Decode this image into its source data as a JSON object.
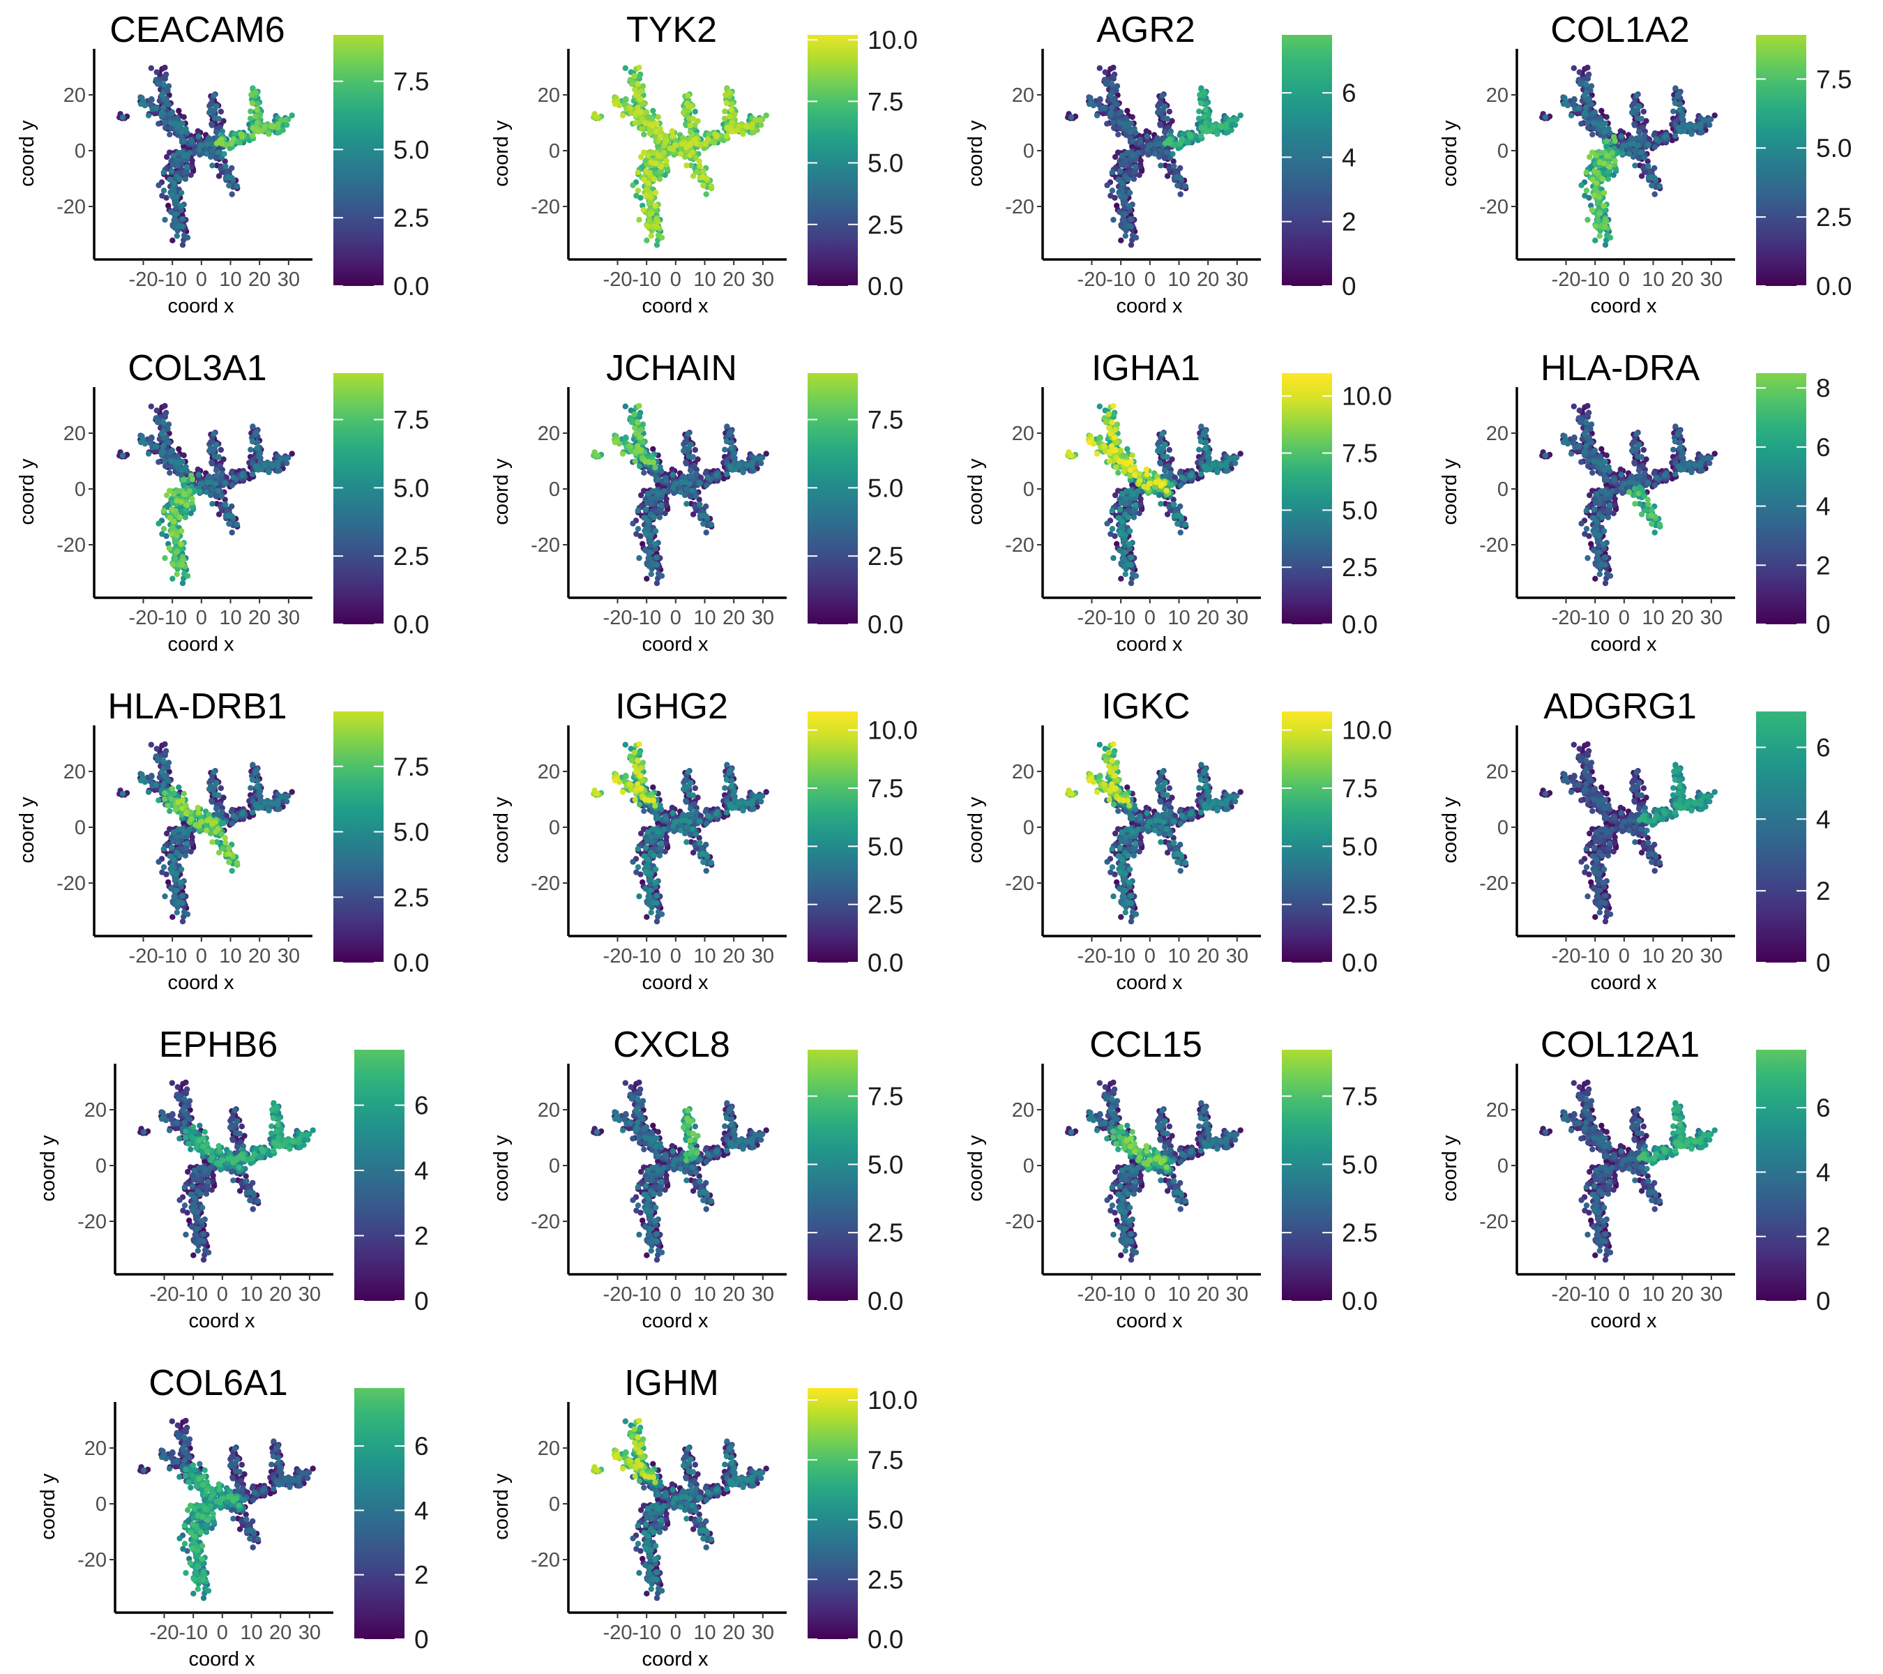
{
  "figure": {
    "colormap": "viridis",
    "colormap_stops": [
      "#440154",
      "#482878",
      "#3e4a89",
      "#31688e",
      "#26828e",
      "#1f9e89",
      "#35b779",
      "#6ece58",
      "#b5de2b",
      "#fde725"
    ],
    "background": "#ffffff"
  },
  "chart_data": [
    {
      "type": "scatter",
      "title": "CEACAM6",
      "xlabel": "coord x",
      "ylabel": "coord y",
      "xticks": [
        "-20",
        "-10",
        "0",
        "10",
        "20",
        "30"
      ],
      "yticks": [
        "20",
        "0",
        "-20"
      ],
      "colorbar_ticks": [
        "0.0",
        "2.5",
        "5.0",
        "7.5"
      ],
      "colorbar_max": 9.2,
      "hot_regions": [
        "right-arm"
      ]
    },
    {
      "type": "scatter",
      "title": "TYK2",
      "xlabel": "coord x",
      "ylabel": "coord y",
      "xticks": [
        "-20",
        "-10",
        "0",
        "10",
        "20",
        "30"
      ],
      "yticks": [
        "20",
        "0",
        "-20"
      ],
      "colorbar_ticks": [
        "0.0",
        "2.5",
        "5.0",
        "7.5",
        "10.0"
      ],
      "colorbar_max": 10.2,
      "hot_regions": [
        "all"
      ]
    },
    {
      "type": "scatter",
      "title": "AGR2",
      "xlabel": "coord x",
      "ylabel": "coord y",
      "xticks": [
        "-20",
        "-10",
        "0",
        "10",
        "20",
        "30"
      ],
      "yticks": [
        "20",
        "0",
        "-20"
      ],
      "colorbar_ticks": [
        "0",
        "2",
        "4",
        "6"
      ],
      "colorbar_max": 7.8,
      "hot_regions": [
        "right-arm"
      ]
    },
    {
      "type": "scatter",
      "title": "COL1A2",
      "xlabel": "coord x",
      "ylabel": "coord y",
      "xticks": [
        "-20",
        "-10",
        "0",
        "10",
        "20",
        "30"
      ],
      "yticks": [
        "20",
        "0",
        "-20"
      ],
      "colorbar_ticks": [
        "0.0",
        "2.5",
        "5.0",
        "7.5"
      ],
      "colorbar_max": 9.1,
      "hot_regions": [
        "bottom-arm"
      ]
    },
    {
      "type": "scatter",
      "title": "COL3A1",
      "xlabel": "coord x",
      "ylabel": "coord y",
      "xticks": [
        "-20",
        "-10",
        "0",
        "10",
        "20",
        "30"
      ],
      "yticks": [
        "20",
        "0",
        "-20"
      ],
      "colorbar_ticks": [
        "0.0",
        "2.5",
        "5.0",
        "7.5"
      ],
      "colorbar_max": 9.2,
      "hot_regions": [
        "bottom-arm"
      ]
    },
    {
      "type": "scatter",
      "title": "JCHAIN",
      "xlabel": "coord x",
      "ylabel": "coord y",
      "xticks": [
        "-20",
        "-10",
        "0",
        "10",
        "20",
        "30"
      ],
      "yticks": [
        "20",
        "0",
        "-20"
      ],
      "colorbar_ticks": [
        "0.0",
        "2.5",
        "5.0",
        "7.5"
      ],
      "colorbar_max": 9.2,
      "hot_regions": [
        "upper-left"
      ]
    },
    {
      "type": "scatter",
      "title": "IGHA1",
      "xlabel": "coord x",
      "ylabel": "coord y",
      "xticks": [
        "-20",
        "-10",
        "0",
        "10",
        "20",
        "30"
      ],
      "yticks": [
        "20",
        "0",
        "-20"
      ],
      "colorbar_ticks": [
        "0.0",
        "2.5",
        "5.0",
        "7.5",
        "10.0"
      ],
      "colorbar_max": 11.0,
      "hot_regions": [
        "upper-left",
        "center"
      ]
    },
    {
      "type": "scatter",
      "title": "HLA-DRA",
      "xlabel": "coord x",
      "ylabel": "coord y",
      "xticks": [
        "-20",
        "-10",
        "0",
        "10",
        "20",
        "30"
      ],
      "yticks": [
        "20",
        "0",
        "-20"
      ],
      "colorbar_ticks": [
        "0",
        "2",
        "4",
        "6",
        "8"
      ],
      "colorbar_max": 8.5,
      "hot_regions": [
        "lower-right-spur"
      ]
    },
    {
      "type": "scatter",
      "title": "HLA-DRB1",
      "xlabel": "coord x",
      "ylabel": "coord y",
      "xticks": [
        "-20",
        "-10",
        "0",
        "10",
        "20",
        "30"
      ],
      "yticks": [
        "20",
        "0",
        "-20"
      ],
      "colorbar_ticks": [
        "0.0",
        "2.5",
        "5.0",
        "7.5"
      ],
      "colorbar_max": 9.6,
      "hot_regions": [
        "center",
        "lower-right-spur"
      ]
    },
    {
      "type": "scatter",
      "title": "IGHG2",
      "xlabel": "coord x",
      "ylabel": "coord y",
      "xticks": [
        "-20",
        "-10",
        "0",
        "10",
        "20",
        "30"
      ],
      "yticks": [
        "20",
        "0",
        "-20"
      ],
      "colorbar_ticks": [
        "0.0",
        "2.5",
        "5.0",
        "7.5",
        "10.0"
      ],
      "colorbar_max": 10.8,
      "hot_regions": [
        "upper-left"
      ]
    },
    {
      "type": "scatter",
      "title": "IGKC",
      "xlabel": "coord x",
      "ylabel": "coord y",
      "xticks": [
        "-20",
        "-10",
        "0",
        "10",
        "20",
        "30"
      ],
      "yticks": [
        "20",
        "0",
        "-20"
      ],
      "colorbar_ticks": [
        "0.0",
        "2.5",
        "5.0",
        "7.5",
        "10.0"
      ],
      "colorbar_max": 10.8,
      "hot_regions": [
        "upper-left"
      ]
    },
    {
      "type": "scatter",
      "title": "ADGRG1",
      "xlabel": "coord x",
      "ylabel": "coord y",
      "xticks": [
        "-20",
        "-10",
        "0",
        "10",
        "20",
        "30"
      ],
      "yticks": [
        "20",
        "0",
        "-20"
      ],
      "colorbar_ticks": [
        "0",
        "2",
        "4",
        "6"
      ],
      "colorbar_max": 7.0,
      "hot_regions": [
        "right-arm"
      ]
    },
    {
      "type": "scatter",
      "title": "EPHB6",
      "xlabel": "coord x",
      "ylabel": "coord y",
      "xticks": [
        "-20",
        "-10",
        "0",
        "10",
        "20",
        "30"
      ],
      "yticks": [
        "20",
        "0",
        "-20"
      ],
      "colorbar_ticks": [
        "0",
        "2",
        "4",
        "6"
      ],
      "colorbar_max": 7.7,
      "hot_regions": [
        "right-arm",
        "center"
      ]
    },
    {
      "type": "scatter",
      "title": "CXCL8",
      "xlabel": "coord x",
      "ylabel": "coord y",
      "xticks": [
        "-20",
        "-10",
        "0",
        "10",
        "20",
        "30"
      ],
      "yticks": [
        "20",
        "0",
        "-20"
      ],
      "colorbar_ticks": [
        "0.0",
        "2.5",
        "5.0",
        "7.5"
      ],
      "colorbar_max": 9.2,
      "hot_regions": [
        "top-arm"
      ]
    },
    {
      "type": "scatter",
      "title": "CCL15",
      "xlabel": "coord x",
      "ylabel": "coord y",
      "xticks": [
        "-20",
        "-10",
        "0",
        "10",
        "20",
        "30"
      ],
      "yticks": [
        "20",
        "0",
        "-20"
      ],
      "colorbar_ticks": [
        "0.0",
        "2.5",
        "5.0",
        "7.5"
      ],
      "colorbar_max": 9.2,
      "hot_regions": [
        "center"
      ]
    },
    {
      "type": "scatter",
      "title": "COL12A1",
      "xlabel": "coord x",
      "ylabel": "coord y",
      "xticks": [
        "-20",
        "-10",
        "0",
        "10",
        "20",
        "30"
      ],
      "yticks": [
        "20",
        "0",
        "-20"
      ],
      "colorbar_ticks": [
        "0",
        "2",
        "4",
        "6"
      ],
      "colorbar_max": 7.8,
      "hot_regions": [
        "right-arm"
      ]
    },
    {
      "type": "scatter",
      "title": "COL6A1",
      "xlabel": "coord x",
      "ylabel": "coord y",
      "xticks": [
        "-20",
        "-10",
        "0",
        "10",
        "20",
        "30"
      ],
      "yticks": [
        "20",
        "0",
        "-20"
      ],
      "colorbar_ticks": [
        "0",
        "2",
        "4",
        "6"
      ],
      "colorbar_max": 7.8,
      "hot_regions": [
        "bottom-arm",
        "center"
      ]
    },
    {
      "type": "scatter",
      "title": "IGHM",
      "xlabel": "coord x",
      "ylabel": "coord y",
      "xticks": [
        "-20",
        "-10",
        "0",
        "10",
        "20",
        "30"
      ],
      "yticks": [
        "20",
        "0",
        "-20"
      ],
      "colorbar_ticks": [
        "0.0",
        "2.5",
        "5.0",
        "7.5",
        "10.0"
      ],
      "colorbar_max": 10.5,
      "hot_regions": [
        "upper-left"
      ]
    }
  ]
}
